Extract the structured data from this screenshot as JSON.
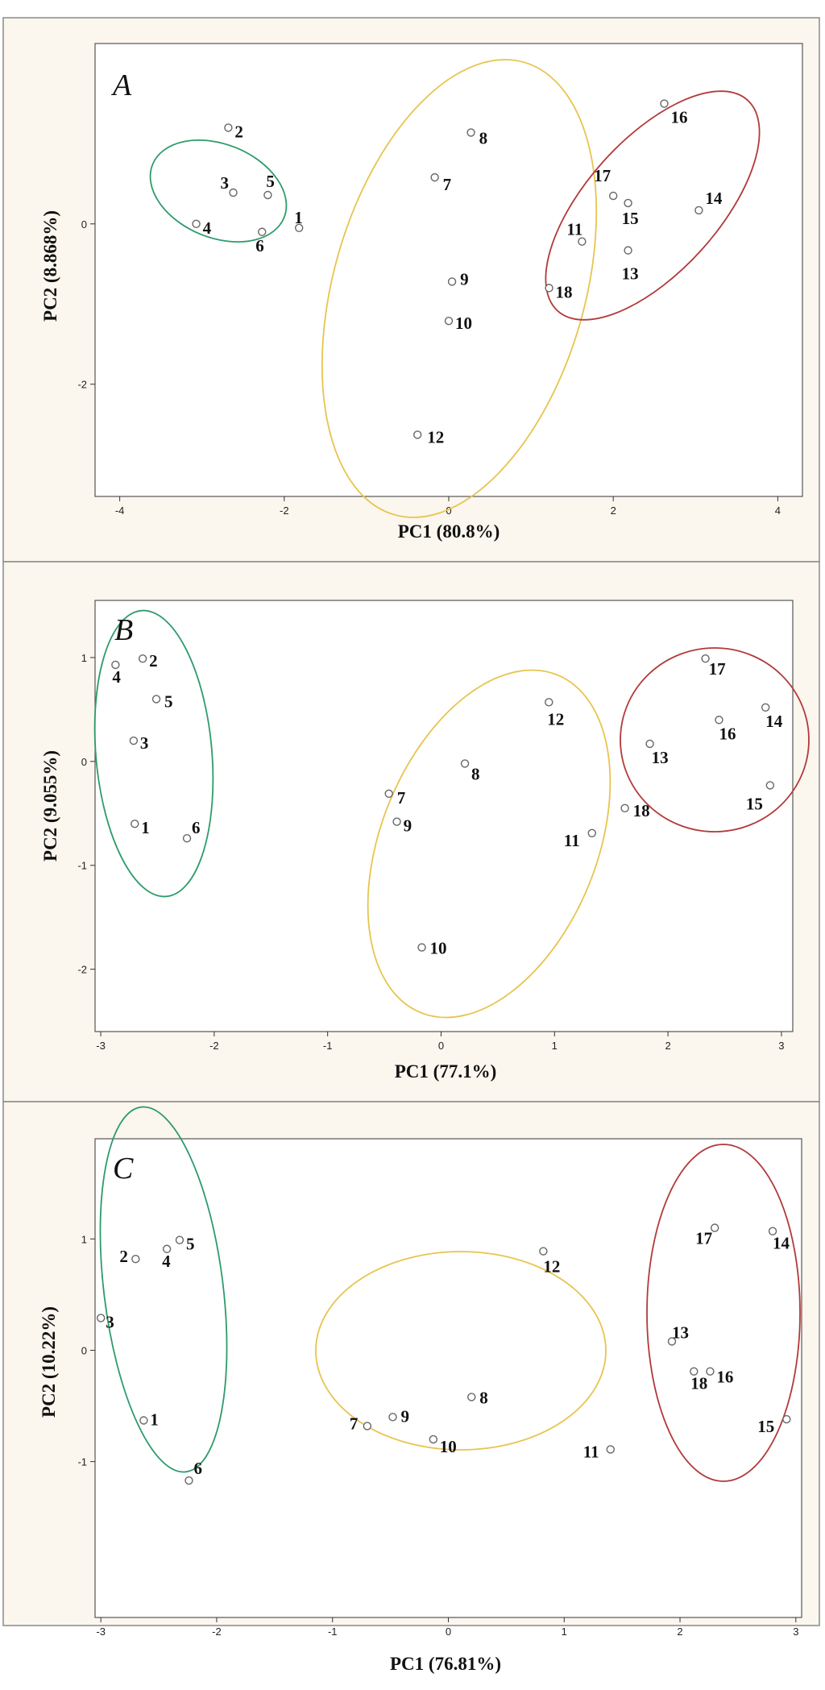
{
  "chart_data": [
    {
      "type": "scatter",
      "panel_label": "A",
      "xlabel": "PC1 (80.8%)",
      "ylabel": "PC2 (8.868%)",
      "xlim": [
        -4.3,
        4.3
      ],
      "ylim": [
        -3.4,
        2.25
      ],
      "xticks": [
        -4,
        -2,
        0,
        2,
        4
      ],
      "yticks": [
        -2,
        0
      ],
      "grid": false,
      "points": [
        {
          "label": "1",
          "x": -1.82,
          "y": -0.05
        },
        {
          "label": "2",
          "x": -2.68,
          "y": 1.2
        },
        {
          "label": "3",
          "x": -2.62,
          "y": 0.39
        },
        {
          "label": "4",
          "x": -3.07,
          "y": 0.0
        },
        {
          "label": "5",
          "x": -2.2,
          "y": 0.36
        },
        {
          "label": "6",
          "x": -2.27,
          "y": -0.1
        },
        {
          "label": "7",
          "x": -0.17,
          "y": 0.58
        },
        {
          "label": "8",
          "x": 0.27,
          "y": 1.14
        },
        {
          "label": "9",
          "x": 0.04,
          "y": -0.72
        },
        {
          "label": "10",
          "x": 0.0,
          "y": -1.21
        },
        {
          "label": "11",
          "x": 1.62,
          "y": -0.22
        },
        {
          "label": "12",
          "x": -0.38,
          "y": -2.63
        },
        {
          "label": "13",
          "x": 2.18,
          "y": -0.33
        },
        {
          "label": "14",
          "x": 3.04,
          "y": 0.17
        },
        {
          "label": "15",
          "x": 2.18,
          "y": 0.26
        },
        {
          "label": "16",
          "x": 2.62,
          "y": 1.5
        },
        {
          "label": "17",
          "x": 2.0,
          "y": 0.35
        },
        {
          "label": "18",
          "x": 1.22,
          "y": -0.8
        }
      ],
      "groups": [
        {
          "members": [
            "1",
            "2",
            "3",
            "4",
            "5",
            "6"
          ],
          "color": "#2e9b6b"
        },
        {
          "members": [
            "7",
            "8",
            "9",
            "10",
            "11",
            "12"
          ],
          "color": "#e8c44e"
        },
        {
          "members": [
            "13",
            "14",
            "15",
            "16",
            "17",
            "18"
          ],
          "color": "#b23a3a"
        }
      ]
    },
    {
      "type": "scatter",
      "panel_label": "B",
      "xlabel": "PC1 (77.1%)",
      "ylabel": "PC2 (9.055%)",
      "xlim": [
        -3.05,
        3.1
      ],
      "ylim": [
        -2.6,
        1.55
      ],
      "xticks": [
        -3,
        -2,
        -1,
        0,
        1,
        2,
        3
      ],
      "yticks": [
        -2,
        -1,
        0,
        1
      ],
      "grid": false,
      "points": [
        {
          "label": "1",
          "x": -2.7,
          "y": -0.6
        },
        {
          "label": "2",
          "x": -2.63,
          "y": 0.99
        },
        {
          "label": "3",
          "x": -2.71,
          "y": 0.2
        },
        {
          "label": "4",
          "x": -2.87,
          "y": 0.93
        },
        {
          "label": "5",
          "x": -2.51,
          "y": 0.6
        },
        {
          "label": "6",
          "x": -2.24,
          "y": -0.74
        },
        {
          "label": "7",
          "x": -0.46,
          "y": -0.31
        },
        {
          "label": "8",
          "x": 0.21,
          "y": -0.02
        },
        {
          "label": "9",
          "x": -0.39,
          "y": -0.58
        },
        {
          "label": "10",
          "x": -0.17,
          "y": -1.79
        },
        {
          "label": "11",
          "x": 1.33,
          "y": -0.69
        },
        {
          "label": "12",
          "x": 0.95,
          "y": 0.57
        },
        {
          "label": "13",
          "x": 1.84,
          "y": 0.17
        },
        {
          "label": "14",
          "x": 2.86,
          "y": 0.52
        },
        {
          "label": "15",
          "x": 2.9,
          "y": -0.23
        },
        {
          "label": "16",
          "x": 2.45,
          "y": 0.4
        },
        {
          "label": "17",
          "x": 2.33,
          "y": 0.99
        },
        {
          "label": "18",
          "x": 1.62,
          "y": -0.45
        }
      ],
      "groups": [
        {
          "members": [
            "1",
            "2",
            "3",
            "4",
            "5",
            "6"
          ],
          "color": "#2e9b6b"
        },
        {
          "members": [
            "7",
            "8",
            "9",
            "10",
            "11",
            "12"
          ],
          "color": "#e8c44e"
        },
        {
          "members": [
            "13",
            "14",
            "15",
            "16",
            "17",
            "18"
          ],
          "color": "#b23a3a"
        }
      ]
    },
    {
      "type": "scatter",
      "panel_label": "C",
      "xlabel": "PC1 (76.81%)",
      "ylabel": "PC2 (10.22%)",
      "xlim": [
        -3.05,
        3.05
      ],
      "ylim": [
        -2.4,
        1.9
      ],
      "xticks": [
        -3,
        -2,
        -1,
        0,
        1,
        2,
        3
      ],
      "yticks": [
        -1,
        0,
        1
      ],
      "grid": false,
      "points": [
        {
          "label": "1",
          "x": -2.63,
          "y": -0.63
        },
        {
          "label": "2",
          "x": -2.7,
          "y": 0.82
        },
        {
          "label": "3",
          "x": -3.0,
          "y": 0.29
        },
        {
          "label": "4",
          "x": -2.43,
          "y": 0.91
        },
        {
          "label": "5",
          "x": -2.32,
          "y": 0.99
        },
        {
          "label": "6",
          "x": -2.24,
          "y": -1.17
        },
        {
          "label": "7",
          "x": -0.7,
          "y": -0.68
        },
        {
          "label": "8",
          "x": 0.2,
          "y": -0.42
        },
        {
          "label": "9",
          "x": -0.48,
          "y": -0.6
        },
        {
          "label": "10",
          "x": -0.13,
          "y": -0.8
        },
        {
          "label": "11",
          "x": 1.4,
          "y": -0.89
        },
        {
          "label": "12",
          "x": 0.82,
          "y": 0.89
        },
        {
          "label": "13",
          "x": 1.93,
          "y": 0.08
        },
        {
          "label": "14",
          "x": 2.8,
          "y": 1.07
        },
        {
          "label": "15",
          "x": 2.92,
          "y": -0.62
        },
        {
          "label": "16",
          "x": 2.26,
          "y": -0.19
        },
        {
          "label": "17",
          "x": 2.3,
          "y": 1.1
        },
        {
          "label": "18",
          "x": 2.12,
          "y": -0.19
        }
      ],
      "groups": [
        {
          "members": [
            "1",
            "2",
            "3",
            "4",
            "5",
            "6"
          ],
          "color": "#2e9b6b"
        },
        {
          "members": [
            "7",
            "8",
            "9",
            "10",
            "11",
            "12"
          ],
          "color": "#e8c44e"
        },
        {
          "members": [
            "13",
            "14",
            "15",
            "16",
            "17",
            "18"
          ],
          "color": "#b23a3a"
        }
      ]
    }
  ]
}
